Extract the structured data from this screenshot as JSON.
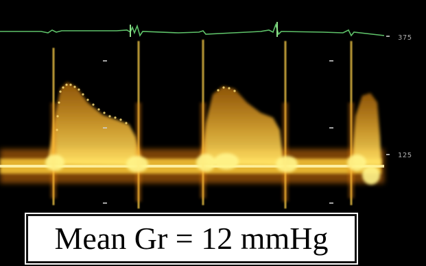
{
  "caption": {
    "text": "Mean Gr = 12 mmHg"
  },
  "scale": {
    "top_label": "375",
    "baseline_label": "125"
  },
  "colors": {
    "background": "#000000",
    "ecg_trace": "#5fc46a",
    "flow_core": "#fff07a",
    "flow_mid": "#ffb21a",
    "flow_edge": "#c0440a",
    "caption_bg": "#ffffff",
    "caption_text": "#000000"
  }
}
